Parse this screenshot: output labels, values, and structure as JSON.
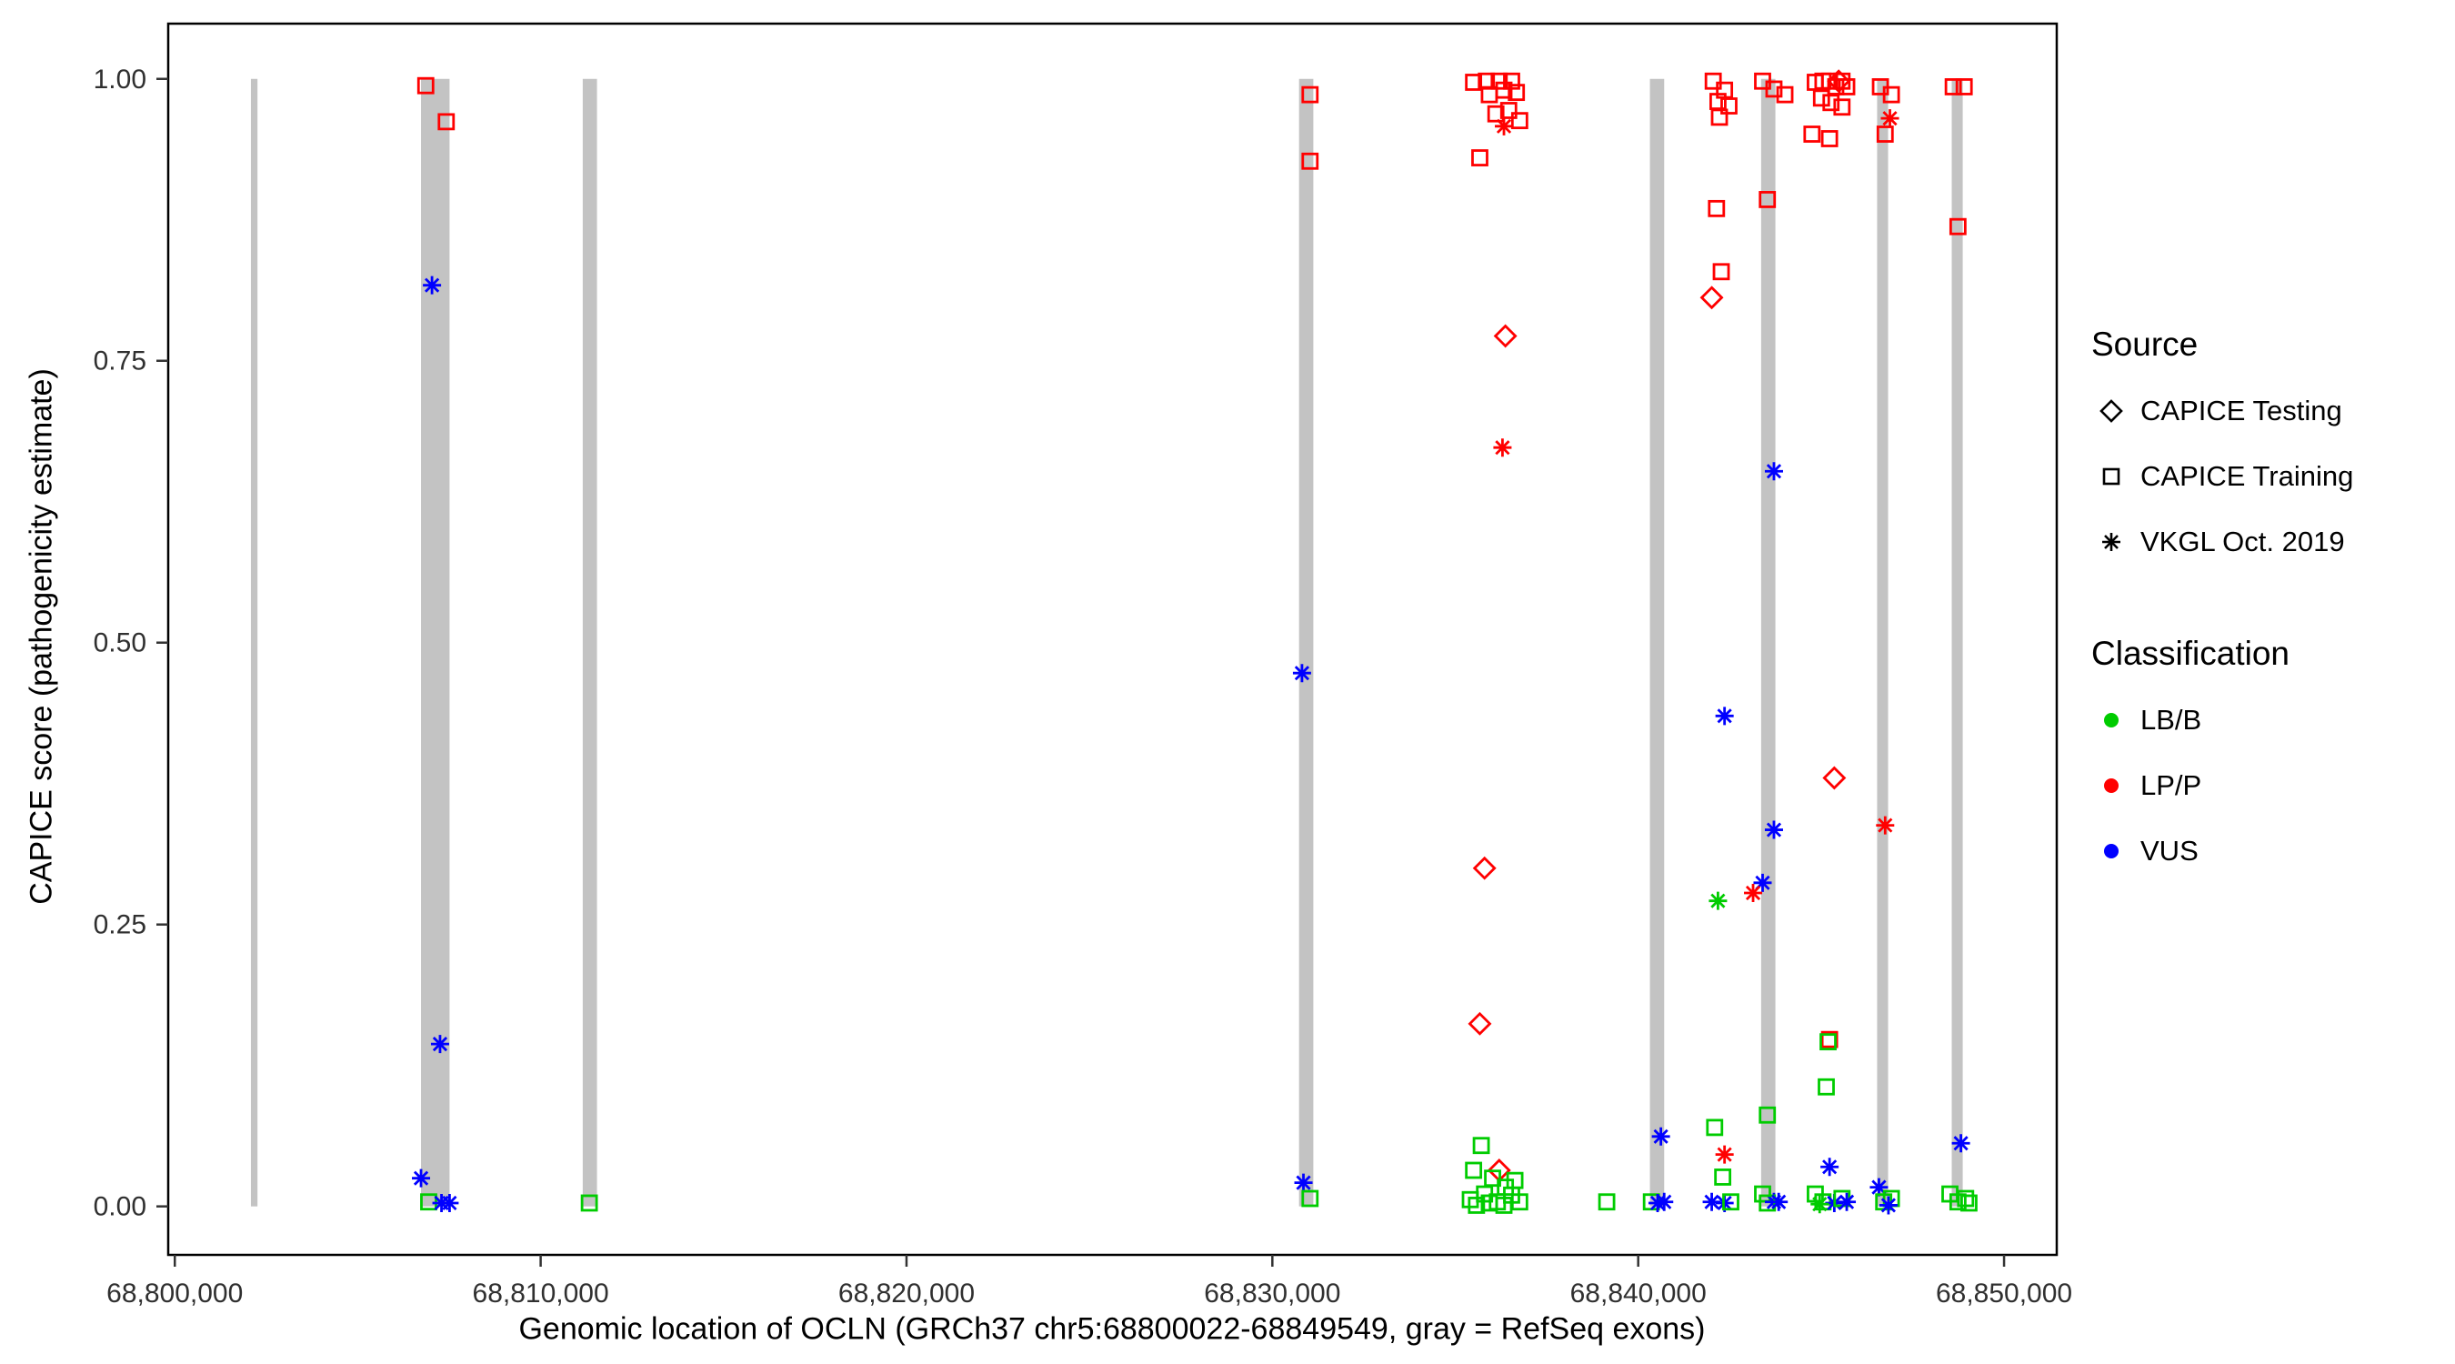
{
  "chart_data": {
    "type": "scatter",
    "title": "",
    "xlabel": "Genomic location of OCLN (GRCh37 chr5:68800022-68849549, gray = RefSeq exons)",
    "ylabel": "CAPICE score (pathogenicity estimate)",
    "xlim": [
      68799820,
      68851440
    ],
    "ylim": [
      -0.043,
      1.049
    ],
    "grid": false,
    "legend_position": "right",
    "x_ticks": [
      {
        "value": 68800000,
        "label": "68,800,000"
      },
      {
        "value": 68810000,
        "label": "68,810,000"
      },
      {
        "value": 68820000,
        "label": "68,820,000"
      },
      {
        "value": 68830000,
        "label": "68,830,000"
      },
      {
        "value": 68840000,
        "label": "68,840,000"
      },
      {
        "value": 68850000,
        "label": "68,850,000"
      }
    ],
    "y_ticks": [
      {
        "value": 0.0,
        "label": "0.00"
      },
      {
        "value": 0.25,
        "label": "0.25"
      },
      {
        "value": 0.5,
        "label": "0.50"
      },
      {
        "value": 0.75,
        "label": "0.75"
      },
      {
        "value": 1.0,
        "label": "1.00"
      }
    ],
    "colors": {
      "exon": "#C3C3C3"
    },
    "class_colors": {
      "LB/B": "#00CC00",
      "LP/P": "#FF0000",
      "VUS": "#0000FF"
    },
    "source_shapes": {
      "testing": "diamond",
      "training": "square",
      "vkgl": "asterisk"
    },
    "exons": [
      {
        "start": 68802080,
        "end": 68802260
      },
      {
        "start": 68806730,
        "end": 68807510
      },
      {
        "start": 68811150,
        "end": 68811540
      },
      {
        "start": 68830730,
        "end": 68831120
      },
      {
        "start": 68840320,
        "end": 68840710
      },
      {
        "start": 68843360,
        "end": 68843750
      },
      {
        "start": 68846530,
        "end": 68846830
      },
      {
        "start": 68848570,
        "end": 68848870
      }
    ],
    "points": [
      {
        "x": 68806860,
        "y": 0.994,
        "source": "training",
        "class": "LP/P"
      },
      {
        "x": 68807420,
        "y": 0.962,
        "source": "training",
        "class": "LP/P"
      },
      {
        "x": 68807030,
        "y": 0.817,
        "source": "vkgl",
        "class": "VUS"
      },
      {
        "x": 68807250,
        "y": 0.144,
        "source": "vkgl",
        "class": "VUS"
      },
      {
        "x": 68806730,
        "y": 0.025,
        "source": "vkgl",
        "class": "VUS"
      },
      {
        "x": 68806940,
        "y": 0.004,
        "source": "training",
        "class": "LB/B"
      },
      {
        "x": 68807290,
        "y": 0.003,
        "source": "vkgl",
        "class": "VUS"
      },
      {
        "x": 68807510,
        "y": 0.003,
        "source": "vkgl",
        "class": "VUS"
      },
      {
        "x": 68811330,
        "y": 0.003,
        "source": "training",
        "class": "LB/B"
      },
      {
        "x": 68831030,
        "y": 0.986,
        "source": "training",
        "class": "LP/P"
      },
      {
        "x": 68831030,
        "y": 0.927,
        "source": "training",
        "class": "LP/P"
      },
      {
        "x": 68830810,
        "y": 0.473,
        "source": "vkgl",
        "class": "VUS"
      },
      {
        "x": 68830850,
        "y": 0.021,
        "source": "vkgl",
        "class": "VUS"
      },
      {
        "x": 68831030,
        "y": 0.007,
        "source": "training",
        "class": "LB/B"
      },
      {
        "x": 68835500,
        "y": 0.997,
        "source": "training",
        "class": "LP/P"
      },
      {
        "x": 68835850,
        "y": 0.998,
        "source": "training",
        "class": "LP/P"
      },
      {
        "x": 68835930,
        "y": 0.986,
        "source": "training",
        "class": "LP/P"
      },
      {
        "x": 68836200,
        "y": 0.998,
        "source": "training",
        "class": "LP/P"
      },
      {
        "x": 68836330,
        "y": 0.99,
        "source": "training",
        "class": "LP/P"
      },
      {
        "x": 68836540,
        "y": 0.998,
        "source": "training",
        "class": "LP/P"
      },
      {
        "x": 68836670,
        "y": 0.988,
        "source": "training",
        "class": "LP/P"
      },
      {
        "x": 68836110,
        "y": 0.969,
        "source": "training",
        "class": "LP/P"
      },
      {
        "x": 68836460,
        "y": 0.972,
        "source": "training",
        "class": "LP/P"
      },
      {
        "x": 68836760,
        "y": 0.963,
        "source": "training",
        "class": "LP/P"
      },
      {
        "x": 68835670,
        "y": 0.93,
        "source": "training",
        "class": "LP/P"
      },
      {
        "x": 68836330,
        "y": 0.958,
        "source": "vkgl",
        "class": "LP/P"
      },
      {
        "x": 68836370,
        "y": 0.772,
        "source": "testing",
        "class": "LP/P"
      },
      {
        "x": 68836290,
        "y": 0.673,
        "source": "vkgl",
        "class": "LP/P"
      },
      {
        "x": 68835800,
        "y": 0.3,
        "source": "testing",
        "class": "LP/P"
      },
      {
        "x": 68835670,
        "y": 0.162,
        "source": "testing",
        "class": "LP/P"
      },
      {
        "x": 68836200,
        "y": 0.032,
        "source": "testing",
        "class": "LP/P"
      },
      {
        "x": 68835710,
        "y": 0.054,
        "source": "training",
        "class": "LB/B"
      },
      {
        "x": 68835500,
        "y": 0.032,
        "source": "training",
        "class": "LB/B"
      },
      {
        "x": 68836020,
        "y": 0.025,
        "source": "training",
        "class": "LB/B"
      },
      {
        "x": 68836370,
        "y": 0.017,
        "source": "training",
        "class": "LB/B"
      },
      {
        "x": 68835800,
        "y": 0.011,
        "source": "training",
        "class": "LB/B"
      },
      {
        "x": 68835410,
        "y": 0.006,
        "source": "training",
        "class": "LB/B"
      },
      {
        "x": 68836150,
        "y": 0.004,
        "source": "training",
        "class": "LB/B"
      },
      {
        "x": 68836540,
        "y": 0.01,
        "source": "training",
        "class": "LB/B"
      },
      {
        "x": 68836760,
        "y": 0.004,
        "source": "training",
        "class": "LB/B"
      },
      {
        "x": 68835930,
        "y": 0.003,
        "source": "training",
        "class": "LB/B"
      },
      {
        "x": 68835580,
        "y": 0.001,
        "source": "training",
        "class": "LB/B"
      },
      {
        "x": 68836330,
        "y": 0.001,
        "source": "training",
        "class": "LB/B"
      },
      {
        "x": 68836630,
        "y": 0.023,
        "source": "training",
        "class": "LB/B"
      },
      {
        "x": 68839140,
        "y": 0.004,
        "source": "training",
        "class": "LB/B"
      },
      {
        "x": 68840620,
        "y": 0.062,
        "source": "vkgl",
        "class": "VUS"
      },
      {
        "x": 68840360,
        "y": 0.004,
        "source": "training",
        "class": "LB/B"
      },
      {
        "x": 68840530,
        "y": 0.003,
        "source": "vkgl",
        "class": "VUS"
      },
      {
        "x": 68840710,
        "y": 0.004,
        "source": "vkgl",
        "class": "VUS"
      },
      {
        "x": 68842050,
        "y": 0.998,
        "source": "training",
        "class": "LP/P"
      },
      {
        "x": 68842360,
        "y": 0.99,
        "source": "training",
        "class": "LP/P"
      },
      {
        "x": 68842180,
        "y": 0.98,
        "source": "training",
        "class": "LP/P"
      },
      {
        "x": 68842480,
        "y": 0.976,
        "source": "training",
        "class": "LP/P"
      },
      {
        "x": 68842220,
        "y": 0.966,
        "source": "training",
        "class": "LP/P"
      },
      {
        "x": 68842140,
        "y": 0.885,
        "source": "training",
        "class": "LP/P"
      },
      {
        "x": 68842270,
        "y": 0.829,
        "source": "training",
        "class": "LP/P"
      },
      {
        "x": 68842010,
        "y": 0.806,
        "source": "testing",
        "class": "LP/P"
      },
      {
        "x": 68842360,
        "y": 0.435,
        "source": "vkgl",
        "class": "VUS"
      },
      {
        "x": 68842180,
        "y": 0.271,
        "source": "vkgl",
        "class": "LB/B"
      },
      {
        "x": 68842090,
        "y": 0.07,
        "source": "training",
        "class": "LB/B"
      },
      {
        "x": 68842360,
        "y": 0.046,
        "source": "vkgl",
        "class": "LP/P"
      },
      {
        "x": 68842310,
        "y": 0.026,
        "source": "training",
        "class": "LB/B"
      },
      {
        "x": 68842010,
        "y": 0.004,
        "source": "vkgl",
        "class": "VUS"
      },
      {
        "x": 68842360,
        "y": 0.003,
        "source": "vkgl",
        "class": "VUS"
      },
      {
        "x": 68842530,
        "y": 0.004,
        "source": "training",
        "class": "LB/B"
      },
      {
        "x": 68843400,
        "y": 0.998,
        "source": "training",
        "class": "LP/P"
      },
      {
        "x": 68843710,
        "y": 0.991,
        "source": "training",
        "class": "LP/P"
      },
      {
        "x": 68844010,
        "y": 0.986,
        "source": "training",
        "class": "LP/P"
      },
      {
        "x": 68843530,
        "y": 0.893,
        "source": "training",
        "class": "LP/P"
      },
      {
        "x": 68843710,
        "y": 0.652,
        "source": "vkgl",
        "class": "VUS"
      },
      {
        "x": 68843710,
        "y": 0.334,
        "source": "vkgl",
        "class": "VUS"
      },
      {
        "x": 68843400,
        "y": 0.287,
        "source": "vkgl",
        "class": "VUS"
      },
      {
        "x": 68843140,
        "y": 0.278,
        "source": "vkgl",
        "class": "LP/P"
      },
      {
        "x": 68843530,
        "y": 0.081,
        "source": "training",
        "class": "LB/B"
      },
      {
        "x": 68843400,
        "y": 0.011,
        "source": "training",
        "class": "LB/B"
      },
      {
        "x": 68843710,
        "y": 0.004,
        "source": "vkgl",
        "class": "VUS"
      },
      {
        "x": 68843530,
        "y": 0.003,
        "source": "training",
        "class": "LB/B"
      },
      {
        "x": 68843840,
        "y": 0.004,
        "source": "vkgl",
        "class": "VUS"
      },
      {
        "x": 68844840,
        "y": 0.997,
        "source": "training",
        "class": "LP/P"
      },
      {
        "x": 68845050,
        "y": 0.998,
        "source": "training",
        "class": "LP/P"
      },
      {
        "x": 68845230,
        "y": 0.998,
        "source": "training",
        "class": "LP/P"
      },
      {
        "x": 68845400,
        "y": 0.993,
        "source": "training",
        "class": "LP/P"
      },
      {
        "x": 68845570,
        "y": 0.998,
        "source": "training",
        "class": "LP/P"
      },
      {
        "x": 68845700,
        "y": 0.993,
        "source": "training",
        "class": "LP/P"
      },
      {
        "x": 68845480,
        "y": 0.998,
        "source": "testing",
        "class": "LP/P"
      },
      {
        "x": 68845010,
        "y": 0.983,
        "source": "training",
        "class": "LP/P"
      },
      {
        "x": 68845270,
        "y": 0.979,
        "source": "training",
        "class": "LP/P"
      },
      {
        "x": 68845570,
        "y": 0.975,
        "source": "training",
        "class": "LP/P"
      },
      {
        "x": 68844750,
        "y": 0.951,
        "source": "training",
        "class": "LP/P"
      },
      {
        "x": 68845230,
        "y": 0.947,
        "source": "training",
        "class": "LP/P"
      },
      {
        "x": 68845360,
        "y": 0.38,
        "source": "testing",
        "class": "LP/P"
      },
      {
        "x": 68845230,
        "y": 0.148,
        "source": "training",
        "class": "LP/P"
      },
      {
        "x": 68845190,
        "y": 0.146,
        "source": "training",
        "class": "LB/B"
      },
      {
        "x": 68845140,
        "y": 0.106,
        "source": "training",
        "class": "LB/B"
      },
      {
        "x": 68845230,
        "y": 0.035,
        "source": "vkgl",
        "class": "VUS"
      },
      {
        "x": 68844840,
        "y": 0.011,
        "source": "training",
        "class": "LB/B"
      },
      {
        "x": 68845050,
        "y": 0.004,
        "source": "training",
        "class": "LB/B"
      },
      {
        "x": 68845360,
        "y": 0.003,
        "source": "vkgl",
        "class": "VUS"
      },
      {
        "x": 68845570,
        "y": 0.007,
        "source": "training",
        "class": "LB/B"
      },
      {
        "x": 68845700,
        "y": 0.004,
        "source": "vkgl",
        "class": "VUS"
      },
      {
        "x": 68844960,
        "y": 0.002,
        "source": "vkgl",
        "class": "LB/B"
      },
      {
        "x": 68846620,
        "y": 0.993,
        "source": "training",
        "class": "LP/P"
      },
      {
        "x": 68846920,
        "y": 0.986,
        "source": "training",
        "class": "LP/P"
      },
      {
        "x": 68846750,
        "y": 0.951,
        "source": "training",
        "class": "LP/P"
      },
      {
        "x": 68846880,
        "y": 0.965,
        "source": "vkgl",
        "class": "LP/P"
      },
      {
        "x": 68846750,
        "y": 0.338,
        "source": "vkgl",
        "class": "LP/P"
      },
      {
        "x": 68846580,
        "y": 0.017,
        "source": "vkgl",
        "class": "VUS"
      },
      {
        "x": 68846710,
        "y": 0.004,
        "source": "training",
        "class": "LB/B"
      },
      {
        "x": 68846920,
        "y": 0.007,
        "source": "training",
        "class": "LB/B"
      },
      {
        "x": 68846840,
        "y": 0.001,
        "source": "vkgl",
        "class": "VUS"
      },
      {
        "x": 68848610,
        "y": 0.993,
        "source": "training",
        "class": "LP/P"
      },
      {
        "x": 68848910,
        "y": 0.993,
        "source": "training",
        "class": "LP/P"
      },
      {
        "x": 68848740,
        "y": 0.869,
        "source": "training",
        "class": "LP/P"
      },
      {
        "x": 68848820,
        "y": 0.056,
        "source": "vkgl",
        "class": "VUS"
      },
      {
        "x": 68848520,
        "y": 0.011,
        "source": "training",
        "class": "LB/B"
      },
      {
        "x": 68848740,
        "y": 0.004,
        "source": "training",
        "class": "LB/B"
      },
      {
        "x": 68848950,
        "y": 0.007,
        "source": "training",
        "class": "LB/B"
      },
      {
        "x": 68849040,
        "y": 0.003,
        "source": "training",
        "class": "LB/B"
      }
    ]
  },
  "legend": {
    "source": {
      "title": "Source",
      "items": [
        {
          "shape": "diamond",
          "label": "CAPICE Testing"
        },
        {
          "shape": "square",
          "label": "CAPICE Training"
        },
        {
          "shape": "asterisk",
          "label": "VKGL Oct. 2019"
        }
      ]
    },
    "classification": {
      "title": "Classification",
      "items": [
        {
          "label": "LB/B"
        },
        {
          "label": "LP/P"
        },
        {
          "label": "VUS"
        }
      ]
    }
  }
}
